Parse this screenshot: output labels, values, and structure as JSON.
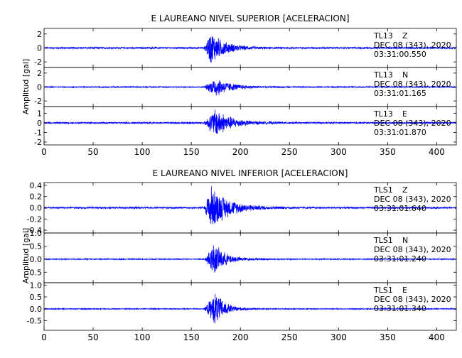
{
  "chart_data": [
    {
      "type": "line",
      "title": "E LAUREANO NIVEL SUPERIOR [ACELERACION]",
      "ylabel": "Amplitud [gal]",
      "xlabel": "",
      "xlim": [
        0,
        420
      ],
      "x_ticks": [
        0,
        50,
        100,
        150,
        200,
        250,
        300,
        350,
        400
      ],
      "line_color": "#0000ff",
      "grid": false,
      "panels": [
        {
          "station": "TL13",
          "component": "Z",
          "date": "DEC 08 (343), 2020",
          "time": "03:31:00.550",
          "ylim": [
            -2.8,
            2.8
          ],
          "y_ticks": [
            2,
            0,
            -2
          ],
          "noise_amp": 0.12,
          "peak_amp": 2.5,
          "p_onset": 163,
          "peak_time": 170,
          "decay": 14
        },
        {
          "station": "TL13",
          "component": "N",
          "date": "DEC 08 (343), 2020",
          "time": "03:31:01.165",
          "ylim": [
            -2.8,
            2.8
          ],
          "y_ticks": [
            2,
            0,
            -2
          ],
          "noise_amp": 0.08,
          "peak_amp": 1.5,
          "p_onset": 163,
          "peak_time": 175,
          "decay": 15
        },
        {
          "station": "TL13",
          "component": "E",
          "date": "DEC 08 (343), 2020",
          "time": "03:31:01.870",
          "ylim": [
            -2.3,
            1.7
          ],
          "y_ticks": [
            1,
            0,
            -1,
            -2
          ],
          "noise_amp": 0.08,
          "peak_amp": 1.6,
          "p_onset": 163,
          "peak_time": 175,
          "decay": 16
        }
      ]
    },
    {
      "type": "line",
      "title": "E LAUREANO NIVEL INFERIOR [ACELERACION]",
      "ylabel": "Amplitud [gal]",
      "xlabel": "",
      "xlim": [
        0,
        420
      ],
      "x_ticks": [
        0,
        50,
        100,
        150,
        200,
        250,
        300,
        350,
        400
      ],
      "line_color": "#0000ff",
      "grid": false,
      "panels": [
        {
          "station": "TLS1",
          "component": "Z",
          "date": "DEC 08 (343), 2020",
          "time": "03:31:01.640",
          "ylim": [
            -0.45,
            0.45
          ],
          "y_ticks": [
            0.4,
            0.2,
            0.0,
            -0.2,
            -0.4
          ],
          "noise_amp": 0.015,
          "peak_amp": 0.42,
          "p_onset": 163,
          "peak_time": 170,
          "decay": 18
        },
        {
          "station": "TLS1",
          "component": "N",
          "date": "DEC 08 (343), 2020",
          "time": "03:31:01.240",
          "ylim": [
            -0.9,
            1.0
          ],
          "y_ticks": [
            1.0,
            0.5,
            0.0,
            -0.5
          ],
          "noise_amp": 0.02,
          "peak_amp": 0.65,
          "p_onset": 163,
          "peak_time": 173,
          "decay": 12
        },
        {
          "station": "TLS1",
          "component": "E",
          "date": "DEC 08 (343), 2020",
          "time": "03:31:01.340",
          "ylim": [
            -0.9,
            1.1
          ],
          "y_ticks": [
            1.0,
            0.5,
            0.0,
            -0.5
          ],
          "noise_amp": 0.02,
          "peak_amp": 0.75,
          "p_onset": 163,
          "peak_time": 175,
          "decay": 10
        }
      ]
    }
  ]
}
